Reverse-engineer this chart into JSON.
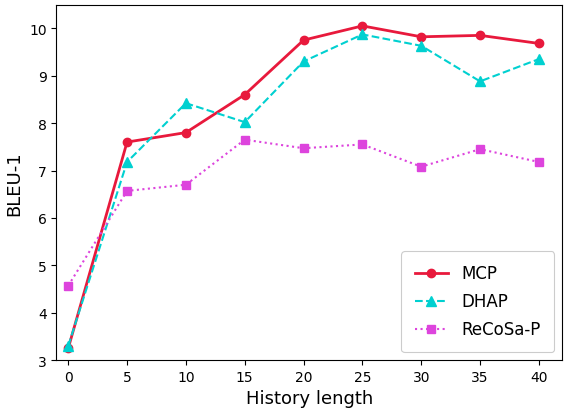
{
  "x": [
    0,
    5,
    10,
    15,
    20,
    25,
    30,
    35,
    40
  ],
  "MCP": [
    3.25,
    7.6,
    7.8,
    8.6,
    9.75,
    10.05,
    9.82,
    9.85,
    9.68
  ],
  "DHAP": [
    3.3,
    7.18,
    8.42,
    8.02,
    9.3,
    9.87,
    9.63,
    8.88,
    9.35
  ],
  "ReCoSa-P": [
    4.57,
    6.57,
    6.7,
    7.65,
    7.47,
    7.55,
    7.08,
    7.45,
    7.18
  ],
  "MCP_color": "#e8193c",
  "DHAP_color": "#00d0d0",
  "ReCoSa_color": "#dd44dd",
  "xlabel": "History length",
  "ylabel": "BLEU-1",
  "ylim": [
    3,
    10.5
  ],
  "xlim": [
    -1,
    42
  ],
  "xticks": [
    0,
    5,
    10,
    15,
    20,
    25,
    30,
    35,
    40
  ],
  "legend_labels": [
    "MCP",
    "DHAP",
    "ReCoSa-P"
  ],
  "legend_loc": "lower right",
  "bg_color": "#ffffff"
}
